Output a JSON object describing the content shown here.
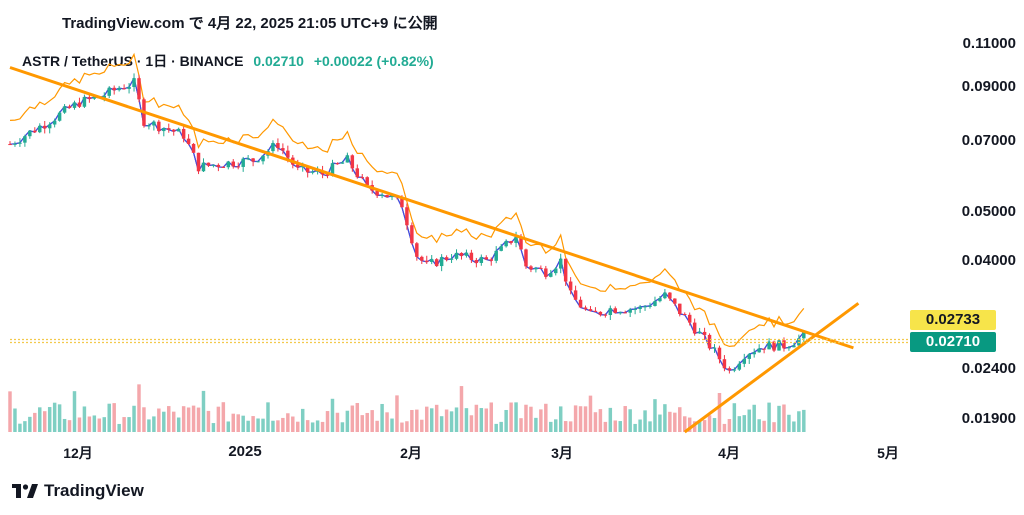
{
  "header": {
    "published": "TradingView.com で 4月 22, 2025 21:05 UTC+9 に公開"
  },
  "legend": {
    "symbol": "ASTR / TetherUS · 1日 · BINANCE",
    "price": "0.02710",
    "change": "+0.00022 (+0.82%)"
  },
  "colors": {
    "up": "#22ab94",
    "down": "#f23645",
    "ma_short": "#7b1fa2",
    "ma_mid": "#3f51e0",
    "ma_long": "#ff9800",
    "trend": "#ff9800",
    "yellow": "#f7e44a",
    "vol_up": "#7fcfc3",
    "vol_down": "#f4a7ab"
  },
  "brand": {
    "name": "TradingView"
  },
  "chart_data": {
    "type": "candlestick",
    "symbol": "ASTR / TetherUS",
    "interval": "1日",
    "exchange": "BINANCE",
    "y_scale": "log",
    "ylim": [
      0.0172,
      0.115
    ],
    "y_ticks": [
      "0.11000",
      "0.09000",
      "0.07000",
      "0.05000",
      "0.04000",
      "0.02400",
      "0.01900"
    ],
    "x_ticks": [
      "12月",
      "2025",
      "2月",
      "3月",
      "4月",
      "5月"
    ],
    "x_tick_dates": [
      "2024-12-01",
      "2025-01-01",
      "2025-02-01",
      "2025-03-01",
      "2025-04-01",
      "2025-05-01"
    ],
    "price_labels": {
      "current": "0.02710",
      "level": "0.02733"
    },
    "close_path": [
      {
        "date": "2024-11-13",
        "close": 0.068
      },
      {
        "date": "2024-11-20",
        "close": 0.075
      },
      {
        "date": "2024-11-27",
        "close": 0.083
      },
      {
        "date": "2024-12-01",
        "close": 0.085
      },
      {
        "date": "2024-12-05",
        "close": 0.089
      },
      {
        "date": "2024-12-08",
        "close": 0.091
      },
      {
        "date": "2024-12-10",
        "close": 0.076
      },
      {
        "date": "2024-12-15",
        "close": 0.073
      },
      {
        "date": "2024-12-18",
        "close": 0.071
      },
      {
        "date": "2024-12-21",
        "close": 0.061
      },
      {
        "date": "2024-12-26",
        "close": 0.062
      },
      {
        "date": "2025-01-01",
        "close": 0.063
      },
      {
        "date": "2025-01-06",
        "close": 0.068
      },
      {
        "date": "2025-01-10",
        "close": 0.06
      },
      {
        "date": "2025-01-15",
        "close": 0.059
      },
      {
        "date": "2025-01-20",
        "close": 0.063
      },
      {
        "date": "2025-01-24",
        "close": 0.055
      },
      {
        "date": "2025-01-27",
        "close": 0.054
      },
      {
        "date": "2025-01-31",
        "close": 0.051
      },
      {
        "date": "2025-02-03",
        "close": 0.04
      },
      {
        "date": "2025-02-05",
        "close": 0.038
      },
      {
        "date": "2025-02-10",
        "close": 0.04
      },
      {
        "date": "2025-02-17",
        "close": 0.039
      },
      {
        "date": "2025-02-20",
        "close": 0.041
      },
      {
        "date": "2025-02-23",
        "close": 0.044
      },
      {
        "date": "2025-02-25",
        "close": 0.038
      },
      {
        "date": "2025-03-01",
        "close": 0.037
      },
      {
        "date": "2025-03-04",
        "close": 0.039
      },
      {
        "date": "2025-03-06",
        "close": 0.033
      },
      {
        "date": "2025-03-10",
        "close": 0.03
      },
      {
        "date": "2025-03-14",
        "close": 0.031
      },
      {
        "date": "2025-03-20",
        "close": 0.031
      },
      {
        "date": "2025-03-25",
        "close": 0.033
      },
      {
        "date": "2025-03-30",
        "close": 0.029
      },
      {
        "date": "2025-04-03",
        "close": 0.026
      },
      {
        "date": "2025-04-07",
        "close": 0.023
      },
      {
        "date": "2025-04-10",
        "close": 0.025
      },
      {
        "date": "2025-04-14",
        "close": 0.026
      },
      {
        "date": "2025-04-18",
        "close": 0.026
      },
      {
        "date": "2025-04-22",
        "close": 0.0271
      }
    ],
    "series": [
      {
        "type": "moving_average",
        "color": "#7b1fa2"
      },
      {
        "type": "moving_average",
        "color": "#3f51e0"
      },
      {
        "type": "moving_average",
        "color": "#ff9800"
      }
    ],
    "trendlines": [
      {
        "type": "resistance",
        "color": "#ff9800"
      },
      {
        "type": "support",
        "color": "#ff9800"
      }
    ],
    "volume": {
      "up_color": "#7fcfc3",
      "down_color": "#f4a7ab"
    }
  }
}
